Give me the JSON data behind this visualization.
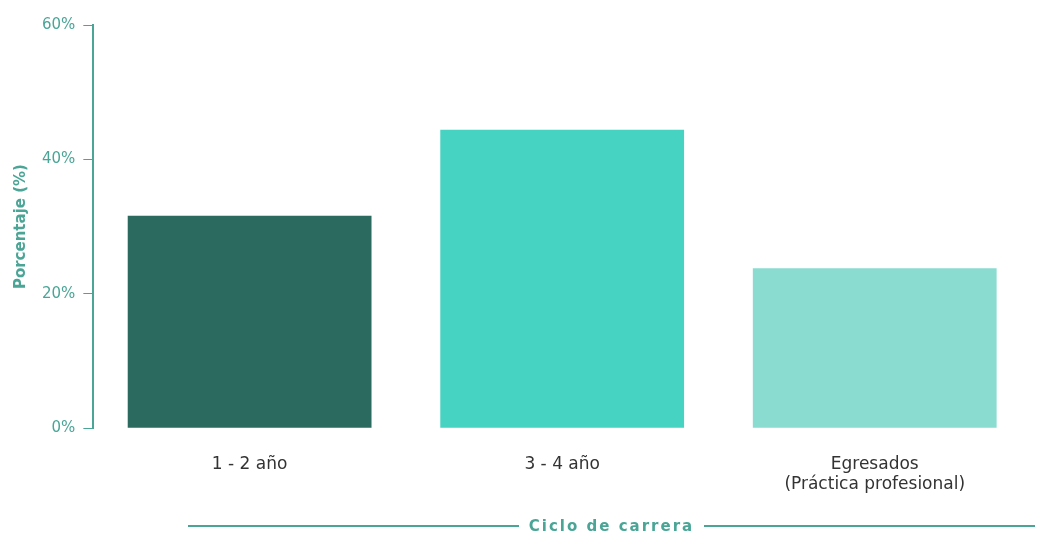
{
  "chart_data": {
    "type": "bar",
    "xlabel": "Ciclo de carrera",
    "ylabel": "Porcentaje (%)",
    "categories": [
      "1 - 2 año",
      "3 - 4 año",
      "Egresados\n(Práctica profesional)"
    ],
    "values": [
      31.6,
      44.4,
      23.8
    ],
    "colors": [
      "#2b6a5e",
      "#46d3c2",
      "#8adcd0"
    ],
    "ylim": [
      0,
      60
    ],
    "yticks": [
      {
        "value": 0,
        "label": "0%"
      },
      {
        "value": 20,
        "label": "20%"
      },
      {
        "value": 40,
        "label": "40%"
      },
      {
        "value": 60,
        "label": "60%"
      }
    ],
    "grid": false,
    "legend": false
  }
}
